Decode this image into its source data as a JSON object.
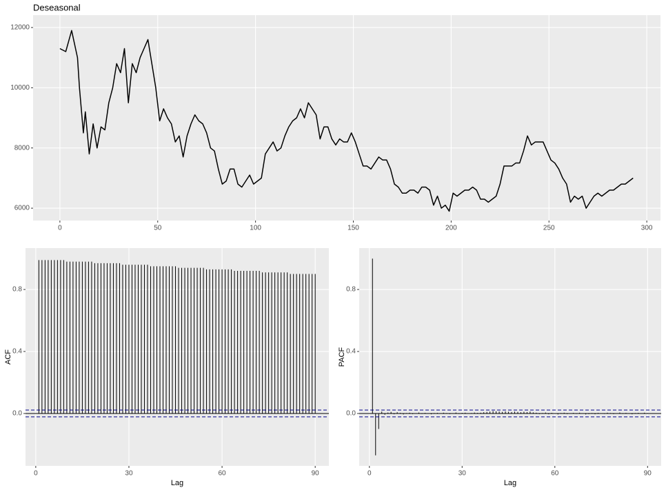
{
  "chart_data": [
    {
      "type": "line",
      "title": "Deseasonal",
      "color": "#000000",
      "x": [
        0,
        3,
        6,
        9,
        10,
        12,
        13,
        15,
        17,
        19,
        21,
        23,
        25,
        27,
        29,
        31,
        33,
        35,
        37,
        39,
        41,
        43,
        45,
        47,
        49,
        51,
        53,
        55,
        57,
        59,
        61,
        63,
        65,
        67,
        69,
        71,
        73,
        75,
        77,
        79,
        81,
        83,
        85,
        87,
        89,
        91,
        93,
        95,
        97,
        99,
        101,
        103,
        105,
        107,
        109,
        111,
        113,
        115,
        117,
        119,
        121,
        123,
        125,
        127,
        129,
        131,
        133,
        135,
        137,
        139,
        141,
        143,
        145,
        147,
        149,
        151,
        153,
        155,
        157,
        159,
        161,
        163,
        165,
        167,
        169,
        171,
        173,
        175,
        177,
        179,
        181,
        183,
        185,
        187,
        189,
        191,
        193,
        195,
        197,
        199,
        201,
        203,
        205,
        207,
        209,
        211,
        213,
        215,
        217,
        219,
        221,
        223,
        225,
        227,
        229,
        231,
        233,
        235,
        237,
        239,
        241,
        243,
        245,
        247,
        249,
        251,
        253,
        255,
        257,
        259,
        261,
        263,
        265,
        267,
        269,
        271,
        273,
        275,
        277,
        279,
        281,
        283,
        285,
        287,
        289,
        291,
        293
      ],
      "values": [
        11300,
        11200,
        11900,
        11000,
        10000,
        8500,
        9200,
        7800,
        8800,
        8000,
        8700,
        8600,
        9500,
        10000,
        10800,
        10500,
        11300,
        9500,
        10800,
        10500,
        11000,
        11300,
        11600,
        10800,
        10000,
        8900,
        9300,
        9000,
        8800,
        8200,
        8400,
        7700,
        8400,
        8800,
        9100,
        8900,
        8800,
        8500,
        8000,
        7900,
        7300,
        6800,
        6900,
        7300,
        7300,
        6800,
        6700,
        6900,
        7100,
        6800,
        6900,
        7000,
        7800,
        8000,
        8200,
        7900,
        8000,
        8400,
        8700,
        8900,
        9000,
        9300,
        9000,
        9500,
        9300,
        9100,
        8300,
        8700,
        8700,
        8300,
        8100,
        8300,
        8200,
        8200,
        8500,
        8200,
        7800,
        7400,
        7400,
        7300,
        7500,
        7700,
        7600,
        7600,
        7300,
        6800,
        6700,
        6500,
        6500,
        6600,
        6600,
        6500,
        6700,
        6700,
        6600,
        6100,
        6400,
        6000,
        6100,
        5900,
        6500,
        6400,
        6500,
        6600,
        6600,
        6700,
        6600,
        6300,
        6300,
        6200,
        6300,
        6400,
        6800,
        7400,
        7400,
        7400,
        7500,
        7500,
        7900,
        8400,
        8100,
        8200,
        8200,
        8200,
        7900,
        7600,
        7500,
        7300,
        7000,
        6800,
        6200,
        6400,
        6300,
        6400,
        6000,
        6200,
        6400,
        6500,
        6400,
        6500,
        6600,
        6600,
        6700,
        6800,
        6800,
        6900,
        7000
      ],
      "xlim": [
        -13.7,
        307
      ],
      "ylim": [
        5590,
        12410
      ],
      "xticks": [
        0,
        50,
        100,
        150,
        200,
        250,
        300
      ],
      "yticks": [
        6000,
        8000,
        10000,
        12000
      ],
      "grid": true
    },
    {
      "type": "bar",
      "xlabel": "Lag",
      "ylabel": "ACF",
      "color": "#000000",
      "ci": [
        -0.022,
        0.022
      ],
      "ci_color": "#00008B",
      "x": [
        1,
        2,
        3,
        4,
        5,
        6,
        7,
        8,
        9,
        10,
        11,
        12,
        13,
        14,
        15,
        16,
        17,
        18,
        19,
        20,
        21,
        22,
        23,
        24,
        25,
        26,
        27,
        28,
        29,
        30,
        31,
        32,
        33,
        34,
        35,
        36,
        37,
        38,
        39,
        40,
        41,
        42,
        43,
        44,
        45,
        46,
        47,
        48,
        49,
        50,
        51,
        52,
        53,
        54,
        55,
        56,
        57,
        58,
        59,
        60,
        61,
        62,
        63,
        64,
        65,
        66,
        67,
        68,
        69,
        70,
        71,
        72,
        73,
        74,
        75,
        76,
        77,
        78,
        79,
        80,
        81,
        82,
        83,
        84,
        85,
        86,
        87,
        88,
        89,
        90
      ],
      "values": [
        0.99,
        0.99,
        0.99,
        0.99,
        0.99,
        0.99,
        0.99,
        0.99,
        0.99,
        0.98,
        0.98,
        0.98,
        0.98,
        0.98,
        0.98,
        0.98,
        0.98,
        0.98,
        0.97,
        0.97,
        0.97,
        0.97,
        0.97,
        0.97,
        0.97,
        0.97,
        0.97,
        0.96,
        0.96,
        0.96,
        0.96,
        0.96,
        0.96,
        0.96,
        0.96,
        0.96,
        0.95,
        0.95,
        0.95,
        0.95,
        0.95,
        0.95,
        0.95,
        0.95,
        0.95,
        0.94,
        0.94,
        0.94,
        0.94,
        0.94,
        0.94,
        0.94,
        0.94,
        0.94,
        0.93,
        0.93,
        0.93,
        0.93,
        0.93,
        0.93,
        0.93,
        0.93,
        0.93,
        0.92,
        0.92,
        0.92,
        0.92,
        0.92,
        0.92,
        0.92,
        0.92,
        0.92,
        0.91,
        0.91,
        0.91,
        0.91,
        0.91,
        0.91,
        0.91,
        0.91,
        0.91,
        0.9,
        0.9,
        0.9,
        0.9,
        0.9,
        0.9,
        0.9,
        0.9,
        0.9
      ],
      "xlim": [
        -3.3,
        94.4
      ],
      "ylim": [
        -0.338,
        1.067
      ],
      "xticks": [
        0,
        30,
        60,
        90
      ],
      "yticks": [
        {
          "value": 0,
          "label": "0.0"
        },
        0.4,
        0.8
      ],
      "grid": true
    },
    {
      "type": "bar",
      "xlabel": "Lag",
      "ylabel": "PACF",
      "color": "#000000",
      "ci": [
        -0.022,
        0.022
      ],
      "ci_color": "#00008B",
      "x": [
        1,
        2,
        3,
        4,
        5,
        6,
        7,
        8,
        9,
        10,
        11,
        12,
        13,
        14,
        15,
        16,
        17,
        18,
        19,
        20,
        21,
        22,
        23,
        24,
        25,
        26,
        27,
        28,
        29,
        30,
        31,
        32,
        33,
        34,
        35,
        36,
        37,
        38,
        39,
        40,
        41,
        42,
        43,
        44,
        45,
        46,
        47,
        48,
        49,
        50,
        51,
        52,
        53,
        54,
        55,
        56,
        57,
        58,
        59,
        60,
        61,
        62,
        63,
        64,
        65,
        66,
        67,
        68,
        69,
        70,
        71,
        72,
        73,
        74,
        75,
        76,
        77,
        78,
        79,
        80,
        81,
        82,
        83,
        84,
        85,
        86,
        87,
        88,
        89,
        90
      ],
      "values": [
        0.999,
        -0.27,
        -0.1,
        0.012,
        -0.008,
        0.006,
        0.01,
        -0.005,
        0.008,
        0.004,
        -0.006,
        0.003,
        0.005,
        -0.004,
        0.002,
        0.006,
        -0.003,
        0.004,
        0.002,
        -0.005,
        0.003,
        0.004,
        -0.002,
        0.005,
        0.003,
        -0.004,
        0.002,
        0.006,
        -0.003,
        0.004,
        0.005,
        -0.002,
        0.003,
        0.006,
        0.004,
        0.005,
        0.008,
        0.01,
        0.012,
        0.015,
        0.014,
        0.012,
        0.01,
        0.013,
        0.011,
        0.009,
        0.012,
        0.01,
        0.008,
        0.011,
        0.009,
        0.012,
        0.007,
        0.005,
        -0.004,
        0.003,
        0.006,
        -0.005,
        0.004,
        0.002,
        -0.006,
        0.003,
        0.005,
        -0.004,
        0.002,
        0.004,
        -0.003,
        0.005,
        0.002,
        -0.006,
        -0.004,
        0.003,
        -0.005,
        0.004,
        0.002,
        -0.003,
        0.005,
        0.003,
        -0.004,
        0.002,
        0.006,
        -0.003,
        0.004,
        0.002,
        -0.005,
        0.003,
        0.004,
        -0.002,
        0.005,
        0.003
      ],
      "xlim": [
        -3.3,
        94.4
      ],
      "ylim": [
        -0.338,
        1.067
      ],
      "xticks": [
        0,
        30,
        60,
        90
      ],
      "yticks": [
        {
          "value": 0,
          "label": "0.0"
        },
        0.4,
        0.8
      ],
      "grid": true
    }
  ]
}
